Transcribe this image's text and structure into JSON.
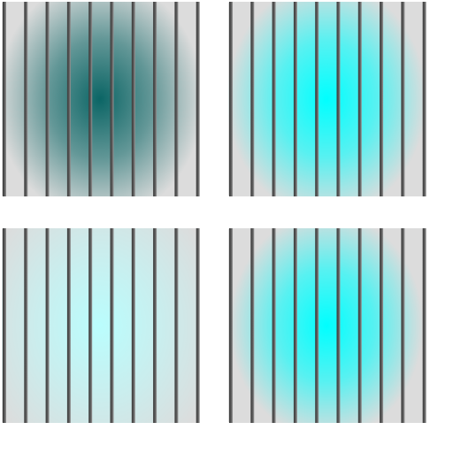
{
  "tiles": [
    {
      "color": "#005f5f"
    },
    {
      "color": "#00ffff"
    },
    {
      "color": "#b8ffff"
    },
    {
      "color": "#00ffff"
    }
  ]
}
